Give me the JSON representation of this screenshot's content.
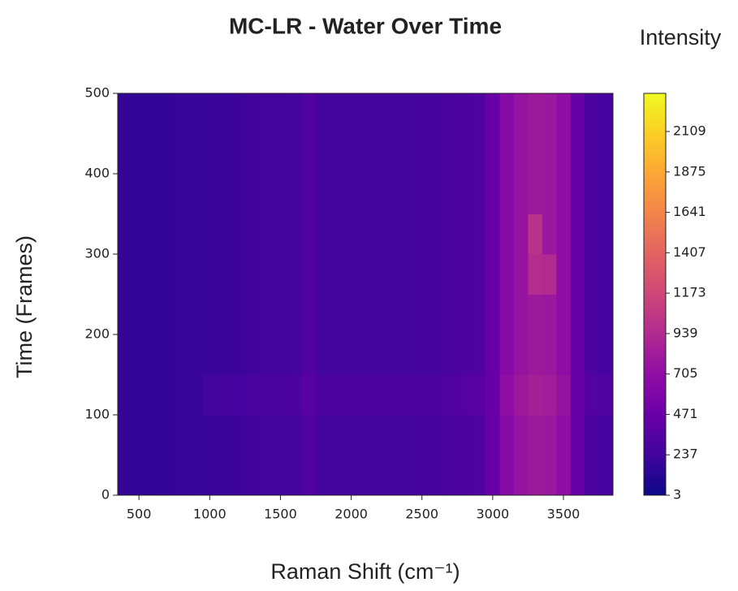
{
  "chart_data": {
    "type": "heatmap",
    "title": "MC-LR - Water Over Time",
    "xlabel": "Raman Shift (cm⁻¹)",
    "ylabel": "Time (Frames)",
    "colorbar_label": "Intensity",
    "colormap": "plasma",
    "x": [
      400,
      500,
      600,
      700,
      800,
      900,
      1000,
      1100,
      1200,
      1300,
      1400,
      1500,
      1600,
      1700,
      1800,
      1900,
      2000,
      2100,
      2200,
      2300,
      2400,
      2500,
      2600,
      2700,
      2800,
      2900,
      3000,
      3100,
      3200,
      3300,
      3400,
      3500,
      3600,
      3700,
      3800
    ],
    "y": [
      25,
      75,
      125,
      175,
      225,
      275,
      325,
      375,
      425,
      475
    ],
    "z": [
      [
        180,
        170,
        170,
        180,
        190,
        200,
        200,
        210,
        220,
        230,
        240,
        240,
        250,
        320,
        250,
        250,
        250,
        250,
        250,
        250,
        250,
        260,
        260,
        280,
        300,
        320,
        450,
        650,
        750,
        800,
        780,
        700,
        450,
        300,
        270
      ],
      [
        180,
        170,
        170,
        180,
        190,
        200,
        200,
        210,
        220,
        230,
        240,
        240,
        250,
        320,
        250,
        250,
        250,
        250,
        250,
        250,
        250,
        260,
        260,
        280,
        300,
        320,
        450,
        650,
        750,
        800,
        780,
        700,
        450,
        300,
        270
      ],
      [
        180,
        170,
        170,
        180,
        190,
        200,
        250,
        260,
        270,
        280,
        290,
        290,
        300,
        370,
        300,
        300,
        300,
        300,
        300,
        300,
        300,
        310,
        310,
        330,
        350,
        370,
        450,
        700,
        800,
        850,
        830,
        750,
        450,
        350,
        320
      ],
      [
        180,
        170,
        170,
        180,
        190,
        200,
        200,
        210,
        220,
        230,
        240,
        240,
        250,
        320,
        250,
        250,
        250,
        250,
        250,
        250,
        250,
        260,
        260,
        280,
        300,
        320,
        450,
        650,
        750,
        800,
        780,
        700,
        450,
        300,
        270
      ],
      [
        180,
        170,
        170,
        180,
        190,
        200,
        200,
        210,
        220,
        230,
        240,
        240,
        250,
        320,
        250,
        250,
        250,
        250,
        250,
        250,
        250,
        260,
        260,
        280,
        300,
        320,
        450,
        650,
        750,
        800,
        780,
        700,
        450,
        300,
        270
      ],
      [
        180,
        170,
        170,
        180,
        190,
        200,
        200,
        210,
        220,
        230,
        240,
        240,
        250,
        320,
        250,
        250,
        250,
        250,
        250,
        250,
        250,
        260,
        260,
        280,
        300,
        320,
        450,
        650,
        750,
        950,
        930,
        700,
        450,
        300,
        270
      ],
      [
        180,
        170,
        170,
        180,
        190,
        200,
        200,
        210,
        220,
        230,
        240,
        240,
        250,
        320,
        250,
        250,
        250,
        250,
        250,
        250,
        250,
        260,
        260,
        280,
        300,
        320,
        450,
        650,
        750,
        1000,
        780,
        700,
        450,
        300,
        270
      ],
      [
        180,
        170,
        170,
        180,
        190,
        200,
        200,
        210,
        220,
        230,
        240,
        240,
        250,
        320,
        250,
        250,
        250,
        250,
        250,
        250,
        250,
        260,
        260,
        280,
        300,
        320,
        450,
        650,
        750,
        800,
        780,
        700,
        450,
        300,
        270
      ],
      [
        180,
        170,
        170,
        180,
        190,
        200,
        200,
        210,
        220,
        230,
        240,
        240,
        250,
        320,
        250,
        250,
        250,
        250,
        250,
        250,
        250,
        260,
        260,
        280,
        300,
        320,
        450,
        650,
        750,
        800,
        780,
        700,
        450,
        300,
        270
      ],
      [
        180,
        170,
        170,
        180,
        190,
        200,
        200,
        210,
        220,
        230,
        240,
        240,
        250,
        320,
        250,
        250,
        250,
        250,
        250,
        250,
        250,
        260,
        260,
        280,
        300,
        320,
        450,
        650,
        750,
        800,
        780,
        700,
        450,
        300,
        270
      ]
    ],
    "xlim": [
      350,
      3850
    ],
    "ylim": [
      0,
      500
    ],
    "xticks": [
      500,
      1000,
      1500,
      2000,
      2500,
      3000,
      3500
    ],
    "yticks": [
      0,
      100,
      200,
      300,
      400,
      500
    ],
    "clim": [
      3,
      2330
    ],
    "cticks": [
      3,
      237,
      471,
      705,
      939,
      1173,
      1407,
      1641,
      1875,
      2109
    ]
  }
}
